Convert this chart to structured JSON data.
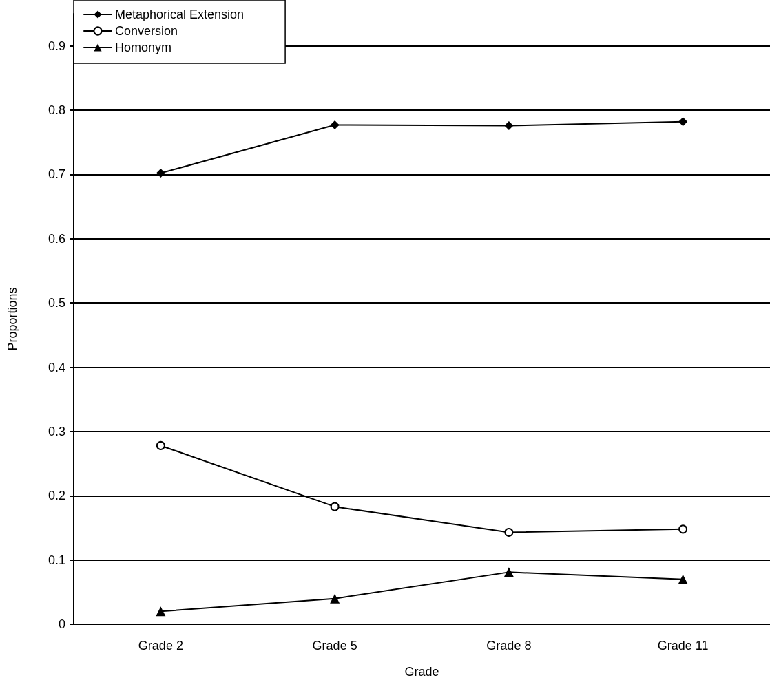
{
  "chart_data": {
    "type": "line",
    "xlabel": "Grade",
    "ylabel": "Proportions",
    "categories": [
      "Grade 2",
      "Grade 5",
      "Grade 8",
      "Grade 11"
    ],
    "series": [
      {
        "name": "Metaphorical Extension",
        "color": "#000000",
        "marker": "diamond",
        "values": [
          0.702,
          0.777,
          0.776,
          0.782
        ]
      },
      {
        "name": "Conversion",
        "color": "#000000",
        "marker": "circle",
        "values": [
          0.278,
          0.183,
          0.143,
          0.148
        ]
      },
      {
        "name": "Homonym",
        "color": "#000000",
        "marker": "triangle",
        "values": [
          0.02,
          0.04,
          0.081,
          0.07
        ]
      }
    ],
    "ylim": [
      0,
      0.95
    ],
    "yticks": [
      0,
      0.1,
      0.2,
      0.3,
      0.4,
      0.5,
      0.6,
      0.7,
      0.8,
      0.9
    ],
    "grid": "y",
    "legend": "top left",
    "line_style": "solid"
  }
}
